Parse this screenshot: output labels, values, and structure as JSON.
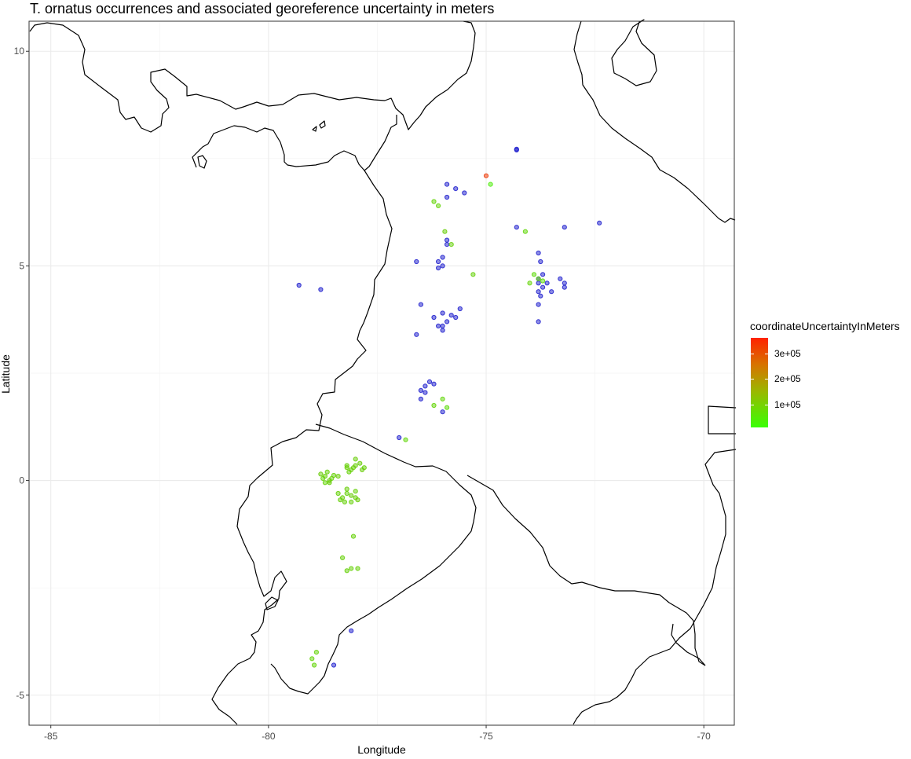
{
  "chart_data": {
    "type": "scatter",
    "title": "T. ornatus occurrences and associated georeference uncertainty in meters",
    "xlabel": "Longitude",
    "ylabel": "Latitude",
    "xlim": [
      -85.5,
      -69.3
    ],
    "ylim": [
      -5.7,
      10.7
    ],
    "xticks": [
      -85,
      -80,
      -75,
      -70
    ],
    "yticks": [
      -5,
      0,
      5,
      10
    ],
    "xtick_labels": [
      "-85",
      "-80",
      "-75",
      "-70"
    ],
    "ytick_labels": [
      "-5",
      "0",
      "5",
      "10"
    ],
    "grid": true,
    "legend": {
      "title": "coordinateUncertaintyInMeters",
      "position": "right",
      "range": [
        10000,
        360000
      ],
      "ticks": [
        100000,
        200000,
        300000
      ],
      "tick_labels": [
        "1e+05",
        "2e+05",
        "3e+05"
      ],
      "colors": {
        "low": "#39ff05",
        "high": "#ff2200"
      }
    },
    "colors": {
      "precise": "#1a1acc",
      "coarse": "#33ee11",
      "outlier": "#ff4444"
    },
    "series": [
      {
        "values": [
          [
            -74.3,
            7.7
          ],
          [
            -74.3,
            7.72
          ],
          [
            -75.0,
            7.1
          ],
          [
            -74.9,
            6.9
          ],
          [
            -75.9,
            6.9
          ],
          [
            -75.5,
            6.7
          ],
          [
            -75.7,
            6.8
          ],
          [
            -75.9,
            6.6
          ],
          [
            -74.3,
            5.9
          ],
          [
            -73.2,
            5.9
          ],
          [
            -72.4,
            6.0
          ],
          [
            -75.9,
            5.6
          ],
          [
            -75.9,
            5.5
          ],
          [
            -76.0,
            5.2
          ],
          [
            -76.1,
            5.1
          ],
          [
            -76.0,
            5.0
          ],
          [
            -76.1,
            4.95
          ],
          [
            -76.6,
            5.1
          ],
          [
            -79.3,
            4.55
          ],
          [
            -78.8,
            4.45
          ],
          [
            -73.8,
            5.3
          ],
          [
            -73.75,
            5.1
          ],
          [
            -73.7,
            4.8
          ],
          [
            -73.8,
            4.7
          ],
          [
            -73.6,
            4.6
          ],
          [
            -73.8,
            4.6
          ],
          [
            -73.7,
            4.5
          ],
          [
            -73.8,
            4.4
          ],
          [
            -73.75,
            4.3
          ],
          [
            -73.8,
            4.1
          ],
          [
            -73.8,
            3.7
          ],
          [
            -73.5,
            4.4
          ],
          [
            -73.2,
            4.5
          ],
          [
            -73.2,
            4.6
          ],
          [
            -73.3,
            4.7
          ],
          [
            -76.0,
            3.9
          ],
          [
            -75.9,
            3.7
          ],
          [
            -75.8,
            3.85
          ],
          [
            -76.1,
            3.6
          ],
          [
            -76.0,
            3.5
          ],
          [
            -75.7,
            3.8
          ],
          [
            -75.6,
            4.0
          ],
          [
            -76.2,
            3.8
          ],
          [
            -76.5,
            4.1
          ],
          [
            -76.6,
            3.4
          ],
          [
            -76.0,
            3.6
          ],
          [
            -76.5,
            2.1
          ],
          [
            -76.4,
            2.2
          ],
          [
            -76.3,
            2.3
          ],
          [
            -76.5,
            1.9
          ],
          [
            -76.4,
            2.05
          ],
          [
            -76.2,
            2.25
          ],
          [
            -76.0,
            1.6
          ],
          [
            -77.0,
            1.0
          ],
          [
            -78.1,
            -3.5
          ],
          [
            -78.5,
            -4.3
          ]
        ],
        "uncertainty": [
          15000,
          15000,
          330000,
          40000,
          20000,
          20000,
          20000,
          20000,
          20000,
          20000,
          20000,
          20000,
          20000,
          15000,
          15000,
          15000,
          15000,
          20000,
          20000,
          20000,
          20000,
          15000,
          15000,
          15000,
          15000,
          15000,
          15000,
          15000,
          15000,
          15000,
          20000,
          20000,
          20000,
          20000,
          20000,
          15000,
          15000,
          15000,
          15000,
          15000,
          15000,
          20000,
          20000,
          20000,
          20000,
          15000,
          15000,
          15000,
          15000,
          15000,
          15000,
          15000,
          15000,
          20000,
          20000,
          20000
        ]
      },
      {
        "values": [
          [
            -76.1,
            6.4
          ],
          [
            -76.2,
            6.5
          ],
          [
            -75.95,
            5.8
          ],
          [
            -75.8,
            5.5
          ],
          [
            -74.1,
            5.8
          ],
          [
            -75.3,
            4.8
          ],
          [
            -73.9,
            4.8
          ],
          [
            -73.8,
            4.7
          ],
          [
            -74.0,
            4.6
          ],
          [
            -73.7,
            4.65
          ],
          [
            -76.0,
            1.9
          ],
          [
            -75.9,
            1.7
          ],
          [
            -76.2,
            1.75
          ],
          [
            -76.85,
            0.95
          ],
          [
            -78.7,
            0.1
          ],
          [
            -78.6,
            0.0
          ],
          [
            -78.8,
            0.15
          ],
          [
            -78.7,
            -0.05
          ],
          [
            -78.55,
            0.05
          ],
          [
            -78.4,
            0.1
          ],
          [
            -78.65,
            0.2
          ],
          [
            -78.6,
            -0.05
          ],
          [
            -78.75,
            0.05
          ],
          [
            -78.5,
            0.12
          ],
          [
            -78.2,
            0.3
          ],
          [
            -78.1,
            0.25
          ],
          [
            -78.0,
            0.35
          ],
          [
            -78.15,
            0.2
          ],
          [
            -77.9,
            0.4
          ],
          [
            -78.0,
            0.5
          ],
          [
            -78.2,
            0.35
          ],
          [
            -78.05,
            0.3
          ],
          [
            -77.8,
            0.3
          ],
          [
            -77.85,
            0.25
          ],
          [
            -78.4,
            -0.3
          ],
          [
            -78.3,
            -0.4
          ],
          [
            -78.2,
            -0.3
          ],
          [
            -78.1,
            -0.35
          ],
          [
            -78.25,
            -0.5
          ],
          [
            -78.0,
            -0.4
          ],
          [
            -78.35,
            -0.45
          ],
          [
            -77.95,
            -0.45
          ],
          [
            -78.1,
            -0.5
          ],
          [
            -78.2,
            -0.2
          ],
          [
            -78.0,
            -0.25
          ],
          [
            -78.05,
            -1.3
          ],
          [
            -78.3,
            -1.8
          ],
          [
            -78.1,
            -2.05
          ],
          [
            -77.95,
            -2.05
          ],
          [
            -78.2,
            -2.1
          ],
          [
            -78.9,
            -4.0
          ],
          [
            -79.0,
            -4.15
          ],
          [
            -78.95,
            -4.3
          ]
        ],
        "uncertainty": [
          80000,
          80000,
          90000,
          85000,
          75000,
          85000,
          70000,
          75000,
          80000,
          70000,
          75000,
          65000,
          80000,
          75000,
          90000,
          85000,
          90000,
          80000,
          85000,
          90000,
          85000,
          90000,
          80000,
          85000,
          90000,
          85000,
          90000,
          85000,
          90000,
          90000,
          85000,
          90000,
          85000,
          90000,
          85000,
          90000,
          85000,
          90000,
          85000,
          90000,
          85000,
          90000,
          85000,
          90000,
          85000,
          85000,
          85000,
          85000,
          85000,
          85000,
          80000,
          80000,
          80000
        ]
      }
    ]
  }
}
